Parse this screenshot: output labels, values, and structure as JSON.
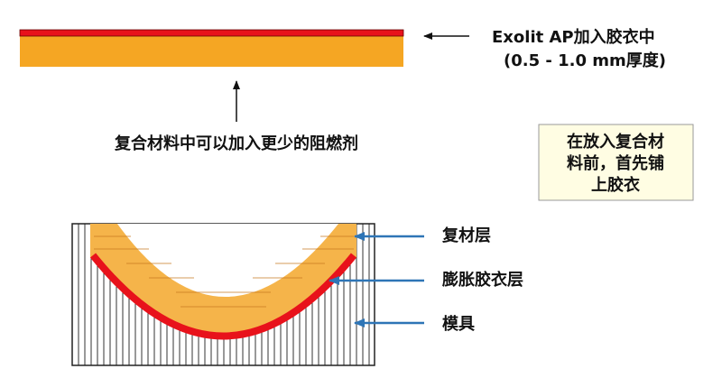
{
  "top_label": {
    "line1": "Exolit AP加入胶衣中",
    "line2": "(0.5 - 1.0 mm厚度)"
  },
  "middle_label": "复合材料中可以加入更少的阻燃剂",
  "note_box": {
    "lines": [
      "在放入复合材",
      "料前，首先铺",
      "上胶衣"
    ]
  },
  "layers": {
    "composite": "复材层",
    "gelcoat": "膨胀胶衣层",
    "mold": "模具"
  }
}
